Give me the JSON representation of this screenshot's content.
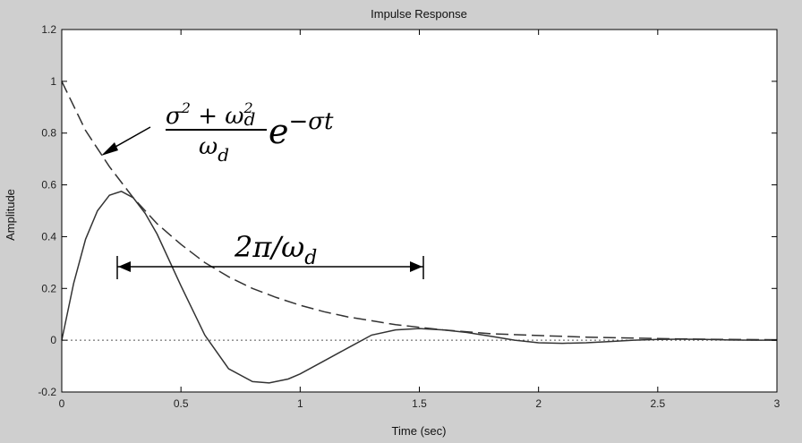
{
  "chart_data": {
    "type": "line",
    "title": "Impulse Response",
    "xlabel": "Time (sec)",
    "ylabel": "Amplitude",
    "xlim": [
      0,
      3
    ],
    "ylim": [
      -0.2,
      1.2
    ],
    "xticks": [
      0,
      0.5,
      1,
      1.5,
      2,
      2.5,
      3
    ],
    "xtick_labels": [
      "0",
      "0.5",
      "1",
      "1.5",
      "2",
      "2.5",
      "3"
    ],
    "yticks": [
      -0.2,
      0,
      0.2,
      0.4,
      0.6,
      0.8,
      1,
      1.2
    ],
    "ytick_labels": [
      "-0.2",
      "0",
      "0.2",
      "0.4",
      "0.6",
      "0.8",
      "1",
      "1.2"
    ],
    "grid": false,
    "series": [
      {
        "style": "solid",
        "x": [
          0,
          0.05,
          0.1,
          0.15,
          0.2,
          0.25,
          0.3,
          0.35,
          0.4,
          0.5,
          0.6,
          0.7,
          0.8,
          0.87,
          0.95,
          1.0,
          1.1,
          1.2,
          1.3,
          1.4,
          1.5,
          1.6,
          1.7,
          1.8,
          1.9,
          2.0,
          2.1,
          2.2,
          2.3,
          2.4,
          2.5,
          2.6,
          2.7,
          2.8,
          2.9,
          3.0
        ],
        "y": [
          0,
          0.22,
          0.39,
          0.5,
          0.56,
          0.575,
          0.55,
          0.49,
          0.41,
          0.21,
          0.02,
          -0.11,
          -0.16,
          -0.165,
          -0.15,
          -0.13,
          -0.08,
          -0.03,
          0.02,
          0.04,
          0.045,
          0.04,
          0.03,
          0.015,
          0.0,
          -0.01,
          -0.012,
          -0.01,
          -0.005,
          0.0,
          0.003,
          0.004,
          0.003,
          0.001,
          0.0,
          0.0
        ]
      },
      {
        "style": "dashed",
        "x": [
          0,
          0.1,
          0.2,
          0.3,
          0.4,
          0.5,
          0.6,
          0.7,
          0.8,
          0.9,
          1.0,
          1.1,
          1.2,
          1.3,
          1.4,
          1.5,
          1.6,
          1.8,
          2.0,
          2.2,
          2.4,
          2.6,
          2.8,
          3.0
        ],
        "y": [
          1.0,
          0.81,
          0.67,
          0.55,
          0.45,
          0.37,
          0.3,
          0.245,
          0.2,
          0.165,
          0.135,
          0.11,
          0.09,
          0.075,
          0.06,
          0.05,
          0.04,
          0.025,
          0.018,
          0.012,
          0.008,
          0.005,
          0.003,
          0.002
        ]
      }
    ],
    "reference_line": {
      "y": 0,
      "style": "dotted"
    },
    "annotations": [
      {
        "kind": "formula",
        "text": "(σ²+ω_d²)/ω_d · e^(−σt)",
        "points_to": [
          0.16,
          0.72
        ]
      },
      {
        "kind": "span",
        "text": "2π/ω_d",
        "x_from": 0.24,
        "x_to": 1.52,
        "y": 0.28
      }
    ]
  }
}
